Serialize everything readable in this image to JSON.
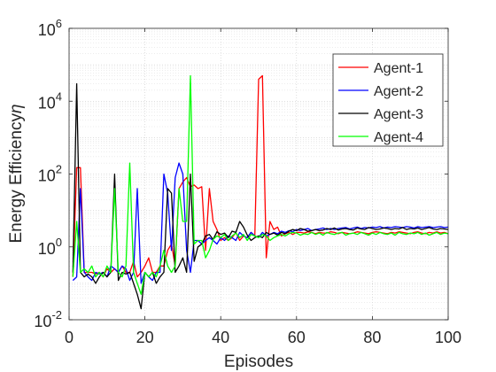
{
  "chart_data": {
    "type": "line",
    "title": "",
    "xlabel": "Episodes",
    "ylabel": "Energy Efficiency",
    "ylabel_symbol": "η",
    "xlim": [
      0,
      100
    ],
    "ylim": [
      0.01,
      1000000
    ],
    "yscale": "log",
    "grid": true,
    "legend_position": "top-right",
    "x_ticks": [
      0,
      20,
      40,
      60,
      80,
      100
    ],
    "x_tick_labels": [
      "0",
      "20",
      "40",
      "60",
      "80",
      "100"
    ],
    "y_ticks": [
      0.01,
      1,
      100,
      10000,
      1000000
    ],
    "y_tick_labels": [
      {
        "base": "10",
        "exp": "-2"
      },
      {
        "base": "10",
        "exp": "0"
      },
      {
        "base": "10",
        "exp": "2"
      },
      {
        "base": "10",
        "exp": "4"
      },
      {
        "base": "10",
        "exp": "6"
      }
    ],
    "series": [
      {
        "name": "Agent-1",
        "color": "#ff0000",
        "x": [
          1,
          2,
          3,
          4,
          5,
          6,
          7,
          8,
          9,
          10,
          11,
          12,
          13,
          14,
          15,
          16,
          17,
          18,
          19,
          20,
          21,
          22,
          23,
          24,
          25,
          26,
          27,
          28,
          29,
          30,
          31,
          32,
          33,
          34,
          35,
          36,
          37,
          38,
          39,
          40,
          41,
          42,
          43,
          44,
          45,
          46,
          47,
          48,
          49,
          50,
          51,
          52,
          53,
          54,
          55,
          56,
          57,
          58,
          59,
          60,
          61,
          62,
          63,
          64,
          65,
          66,
          67,
          68,
          69,
          70,
          71,
          72,
          73,
          74,
          75,
          76,
          77,
          78,
          79,
          80,
          81,
          82,
          83,
          84,
          85,
          86,
          87,
          88,
          89,
          90,
          91,
          92,
          93,
          94,
          95,
          96,
          97,
          98,
          99,
          100
        ],
        "y": [
          0.15,
          150,
          150,
          0.2,
          0.2,
          0.2,
          0.18,
          0.2,
          0.15,
          0.25,
          0.2,
          0.25,
          0.2,
          0.3,
          0.2,
          0.2,
          0.4,
          0.15,
          0.2,
          0.3,
          0.5,
          0.2,
          0.2,
          0.3,
          0.3,
          0.8,
          1.2,
          0.3,
          40,
          60,
          80,
          45,
          50,
          40,
          45,
          0.8,
          40,
          5,
          3,
          1.5,
          1.8,
          1.5,
          1.8,
          2.5,
          1.5,
          2,
          1.8,
          2.5,
          2,
          40000,
          50000,
          0.5,
          5,
          3,
          3.5,
          2,
          2.3,
          2.5,
          2.2,
          2.5,
          2.5,
          2.4,
          2.6,
          2.5,
          2.3,
          2.5,
          2.4,
          2.4,
          2.6,
          2.5,
          2.3,
          2.5,
          2.4,
          2.3,
          2.4,
          2.6,
          2.5,
          2.4,
          2.3,
          2.5,
          2.6,
          2.5,
          2.4,
          2.3,
          2.5,
          2.4,
          2.6,
          2.5,
          2.4,
          2.3,
          2.5,
          2.6,
          2.4,
          2.3,
          2.5,
          2.4,
          2.6,
          2.4,
          2.5,
          2.3
        ]
      },
      {
        "name": "Agent-2",
        "color": "#0000ff",
        "x": [
          1,
          2,
          3,
          4,
          5,
          6,
          7,
          8,
          9,
          10,
          11,
          12,
          13,
          14,
          15,
          16,
          17,
          18,
          19,
          20,
          21,
          22,
          23,
          24,
          25,
          26,
          27,
          28,
          29,
          30,
          31,
          32,
          33,
          34,
          35,
          36,
          37,
          38,
          39,
          40,
          41,
          42,
          43,
          44,
          45,
          46,
          47,
          48,
          49,
          50,
          51,
          52,
          53,
          54,
          55,
          56,
          57,
          58,
          59,
          60,
          61,
          62,
          63,
          64,
          65,
          66,
          67,
          68,
          69,
          70,
          71,
          72,
          73,
          74,
          75,
          76,
          77,
          78,
          79,
          80,
          81,
          82,
          83,
          84,
          85,
          86,
          87,
          88,
          89,
          90,
          91,
          92,
          93,
          94,
          95,
          96,
          97,
          98,
          99,
          100
        ],
        "y": [
          0.12,
          0.15,
          40,
          0.2,
          0.15,
          0.12,
          0.2,
          0.18,
          0.2,
          0.15,
          0.3,
          0.25,
          0.2,
          0.3,
          0.25,
          0.12,
          0.2,
          40,
          0.1,
          0.2,
          0.15,
          0.12,
          0.2,
          0.2,
          100,
          30,
          0.8,
          80,
          200,
          100,
          0.8,
          0.2,
          1.5,
          1.5,
          1.2,
          1.5,
          1.8,
          1.5,
          1.2,
          1.8,
          1.5,
          2,
          1.8,
          1.5,
          2.5,
          2,
          1.8,
          2.5,
          2,
          1.8,
          2.5,
          2,
          2.2,
          2.5,
          2.3,
          2.7,
          2.5,
          2.8,
          2.6,
          3,
          2.8,
          3,
          3.2,
          2.8,
          3,
          3.1,
          3.3,
          3,
          3.2,
          3,
          3.2,
          3.3,
          3.4,
          3.1,
          3.3,
          3.5,
          3.2,
          3.4,
          3.3,
          3.5,
          3.4,
          3.6,
          3.3,
          3.5,
          3.4,
          3.6,
          3.5,
          3.4,
          3.6,
          3.5,
          3.3,
          3.6,
          3.4,
          3.5,
          3.6,
          3.4,
          3.5,
          3.6,
          3.4,
          3.5
        ]
      },
      {
        "name": "Agent-3",
        "color": "#000000",
        "x": [
          1,
          2,
          3,
          4,
          5,
          6,
          7,
          8,
          9,
          10,
          11,
          12,
          13,
          14,
          15,
          16,
          17,
          18,
          19,
          20,
          21,
          22,
          23,
          24,
          25,
          26,
          27,
          28,
          29,
          30,
          31,
          32,
          33,
          34,
          35,
          36,
          37,
          38,
          39,
          40,
          41,
          42,
          43,
          44,
          45,
          46,
          47,
          48,
          49,
          50,
          51,
          52,
          53,
          54,
          55,
          56,
          57,
          58,
          59,
          60,
          61,
          62,
          63,
          64,
          65,
          66,
          67,
          68,
          69,
          70,
          71,
          72,
          73,
          74,
          75,
          76,
          77,
          78,
          79,
          80,
          81,
          82,
          83,
          84,
          85,
          86,
          87,
          88,
          89,
          90,
          91,
          92,
          93,
          94,
          95,
          96,
          97,
          98,
          99,
          100
        ],
        "y": [
          0.2,
          30000,
          0.2,
          0.15,
          0.18,
          0.15,
          0.1,
          0.15,
          0.2,
          0.15,
          0.2,
          100,
          0.12,
          0.2,
          0.18,
          0.2,
          0.1,
          0.05,
          0.02,
          0.2,
          0.15,
          0.2,
          0.1,
          0.15,
          0.2,
          40,
          30,
          0.2,
          0.3,
          0.5,
          0.2,
          100,
          0.4,
          1,
          1.2,
          2,
          2.2,
          1.6,
          2.6,
          2.2,
          2.4,
          1.8,
          2.7,
          2.5,
          5,
          3.5,
          2.1,
          1.5,
          1.8,
          2,
          1.8,
          2.5,
          2.2,
          2.4,
          2.1,
          2.5,
          2.3,
          2.7,
          3,
          2.8,
          3.2,
          3,
          2.7,
          2.8,
          3,
          2.8,
          2.9,
          3.2,
          3,
          3.3,
          2.9,
          3.1,
          3.2,
          3,
          2.9,
          3.3,
          3.1,
          3,
          3.4,
          3.2,
          3,
          3.1,
          3.3,
          3.2,
          3,
          3.2,
          3.1,
          3.4,
          3,
          3.2,
          3.1,
          3.3,
          3,
          3.2,
          3.4,
          3.1,
          3,
          3.2,
          3.1,
          3
        ]
      },
      {
        "name": "Agent-4",
        "color": "#00ff00",
        "x": [
          1,
          2,
          3,
          4,
          5,
          6,
          7,
          8,
          9,
          10,
          11,
          12,
          13,
          14,
          15,
          16,
          17,
          18,
          19,
          20,
          21,
          22,
          23,
          24,
          25,
          26,
          27,
          28,
          29,
          30,
          31,
          32,
          33,
          34,
          35,
          36,
          37,
          38,
          39,
          40,
          41,
          42,
          43,
          44,
          45,
          46,
          47,
          48,
          49,
          50,
          51,
          52,
          53,
          54,
          55,
          56,
          57,
          58,
          59,
          60,
          61,
          62,
          63,
          64,
          65,
          66,
          67,
          68,
          69,
          70,
          71,
          72,
          73,
          74,
          75,
          76,
          77,
          78,
          79,
          80,
          81,
          82,
          83,
          84,
          85,
          86,
          87,
          88,
          89,
          90,
          91,
          92,
          93,
          94,
          95,
          96,
          97,
          98,
          99,
          100
        ],
        "y": [
          0.15,
          5,
          0.2,
          0.25,
          0.2,
          0.3,
          0.15,
          0.2,
          0.15,
          0.3,
          0.2,
          40,
          0.2,
          0.15,
          0.3,
          200,
          0.2,
          0.1,
          0.05,
          0.2,
          0.15,
          0.2,
          0.15,
          0.3,
          0.8,
          0.3,
          0.2,
          0.3,
          40,
          5,
          5,
          50000,
          1.2,
          1.5,
          1.5,
          0.5,
          0.8,
          1.6,
          2,
          1.8,
          2.2,
          1.5,
          2,
          2.4,
          1.8,
          2.2,
          1.5,
          2.2,
          2,
          1.8,
          2.2,
          2,
          1.5,
          1.8,
          2,
          2.2,
          2,
          2.3,
          2.5,
          2.4,
          2.1,
          2.3,
          2.2,
          2.5,
          2.2,
          2.4,
          2.1,
          2.5,
          2.3,
          2.2,
          2.4,
          2.5,
          2.1,
          2.3,
          2.4,
          2.2,
          2.5,
          2.3,
          2.1,
          2.4,
          2.2,
          2.5,
          2.3,
          2.2,
          2.4,
          2.1,
          2.5,
          2.3,
          2.2,
          2.4,
          2.3,
          2.5,
          2.2,
          2.4,
          2.1,
          2.3,
          2.5,
          2.2,
          2.4,
          2.3
        ]
      }
    ]
  }
}
